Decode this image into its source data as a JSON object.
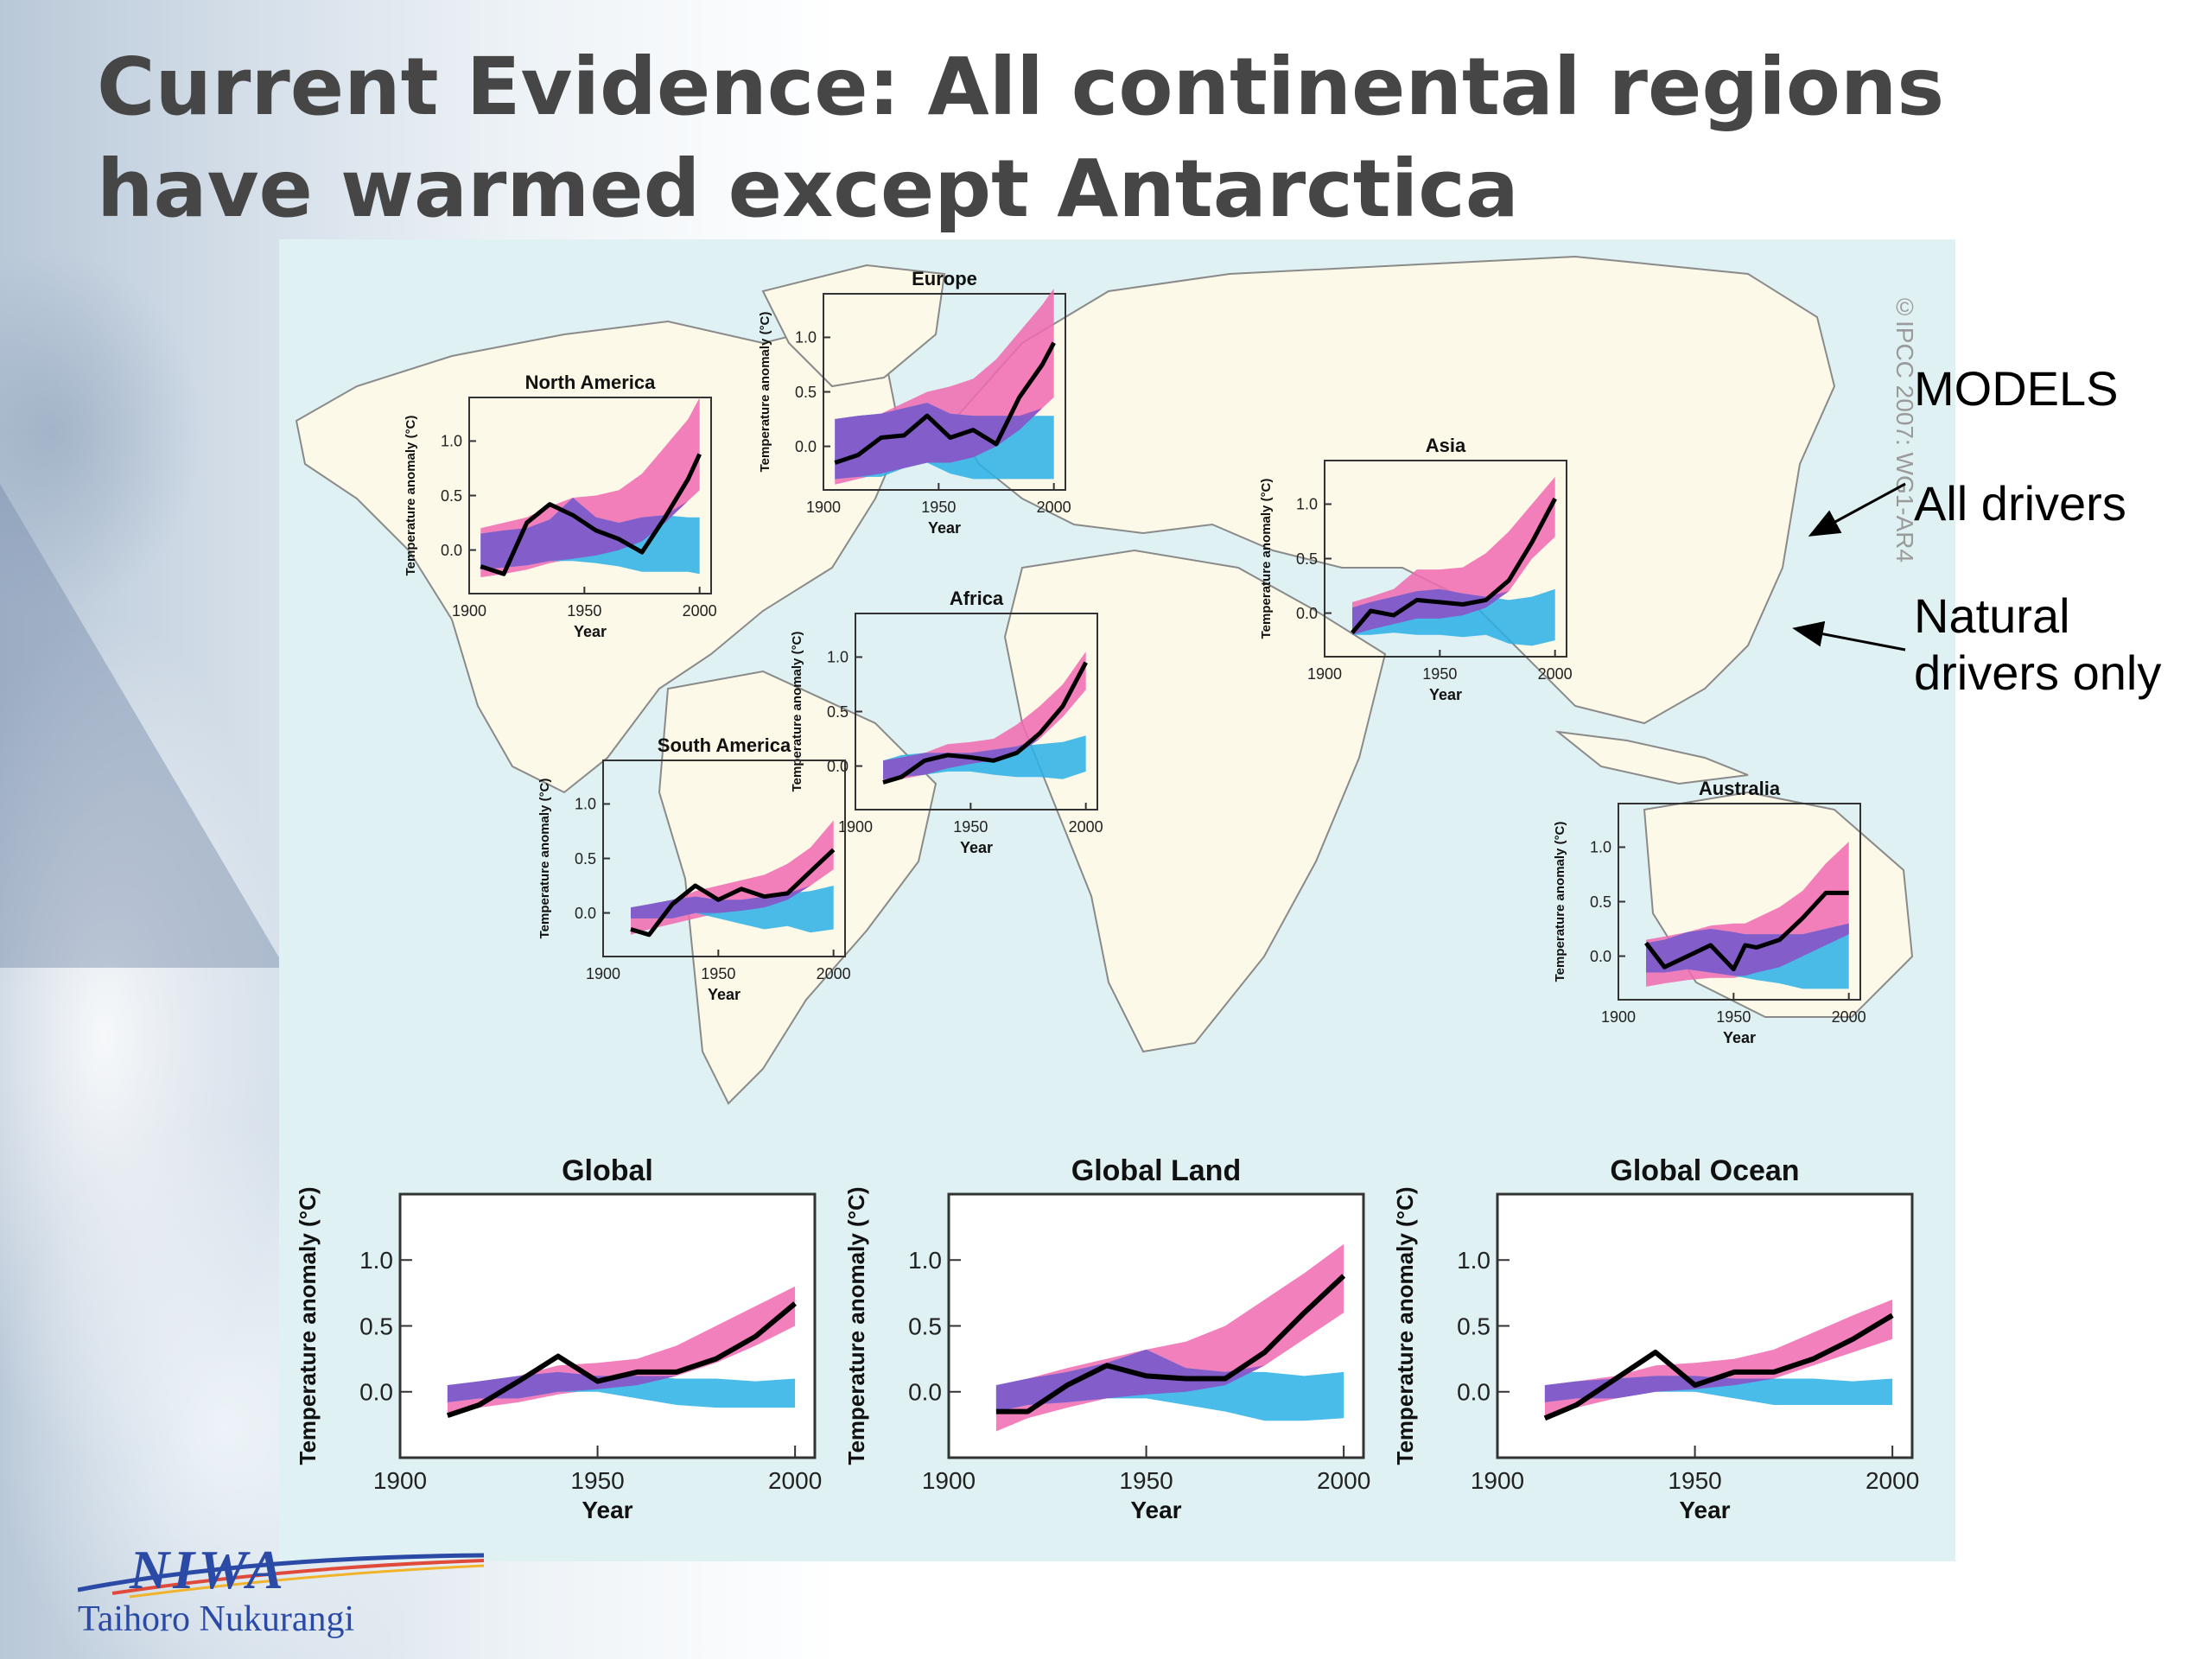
{
  "slide": {
    "title_line1": "Current Evidence: All continental regions",
    "title_line2": "have warmed except Antarctica"
  },
  "legend": {
    "models": "MODELS",
    "all_drivers": "All drivers",
    "natural_line1": "Natural",
    "natural_line2": "drivers only"
  },
  "credit": "©IPCC 2007: WG1-AR4",
  "logo": {
    "name": "NIWA",
    "subtitle": "Taihoro Nukurangi"
  },
  "colors": {
    "all_drivers": "#f06ab0",
    "natural": "#2ab0e6",
    "overlap": "#8a55c8",
    "observed": "#000000",
    "figure_bg": "#dff1f2"
  },
  "chart_data": [
    {
      "type": "area",
      "id": "north-america",
      "title": "North America",
      "xlabel": "Year",
      "ylabel": "Temperature anomaly (°C)",
      "xlim": [
        1900,
        2005
      ],
      "ylim": [
        -0.4,
        1.4
      ],
      "xticks": [
        1900,
        1950,
        2000
      ],
      "yticks": [
        0.0,
        0.5,
        1.0
      ],
      "x": [
        1905,
        1915,
        1925,
        1935,
        1945,
        1955,
        1965,
        1975,
        1985,
        1995,
        2000
      ],
      "observed": [
        -0.15,
        -0.22,
        0.25,
        0.42,
        0.32,
        0.18,
        0.1,
        -0.02,
        0.3,
        0.65,
        0.88
      ],
      "all_drivers": {
        "low": [
          -0.25,
          -0.22,
          -0.18,
          -0.12,
          -0.08,
          -0.05,
          0.0,
          0.08,
          0.25,
          0.45,
          0.55
        ],
        "high": [
          0.2,
          0.25,
          0.3,
          0.4,
          0.48,
          0.5,
          0.55,
          0.7,
          0.95,
          1.2,
          1.4
        ]
      },
      "natural": {
        "low": [
          -0.18,
          -0.16,
          -0.14,
          -0.1,
          -0.1,
          -0.12,
          -0.15,
          -0.2,
          -0.2,
          -0.2,
          -0.22
        ],
        "high": [
          0.15,
          0.18,
          0.2,
          0.28,
          0.48,
          0.3,
          0.25,
          0.3,
          0.32,
          0.3,
          0.3
        ]
      }
    },
    {
      "type": "area",
      "id": "europe",
      "title": "Europe",
      "xlabel": "Year",
      "ylabel": "Temperature anomaly (°C)",
      "xlim": [
        1900,
        2005
      ],
      "ylim": [
        -0.4,
        1.4
      ],
      "xticks": [
        1900,
        1950,
        2000
      ],
      "yticks": [
        0.0,
        0.5,
        1.0
      ],
      "x": [
        1905,
        1915,
        1925,
        1935,
        1945,
        1955,
        1965,
        1975,
        1985,
        1995,
        2000
      ],
      "observed": [
        -0.15,
        -0.08,
        0.08,
        0.1,
        0.28,
        0.08,
        0.15,
        0.02,
        0.45,
        0.75,
        0.95
      ],
      "all_drivers": {
        "low": [
          -0.35,
          -0.3,
          -0.25,
          -0.2,
          -0.15,
          -0.15,
          -0.1,
          0.0,
          0.15,
          0.35,
          0.45
        ],
        "high": [
          0.25,
          0.28,
          0.3,
          0.4,
          0.5,
          0.55,
          0.62,
          0.8,
          1.05,
          1.3,
          1.45
        ]
      },
      "natural": {
        "low": [
          -0.3,
          -0.28,
          -0.28,
          -0.2,
          -0.15,
          -0.25,
          -0.3,
          -0.3,
          -0.3,
          -0.3,
          -0.3
        ],
        "high": [
          0.25,
          0.28,
          0.3,
          0.35,
          0.4,
          0.3,
          0.28,
          0.28,
          0.28,
          0.28,
          0.28
        ]
      }
    },
    {
      "type": "area",
      "id": "asia",
      "title": "Asia",
      "xlabel": "Year",
      "ylabel": "Temperature anomaly (°C)",
      "xlim": [
        1900,
        2005
      ],
      "ylim": [
        -0.4,
        1.4
      ],
      "xticks": [
        1900,
        1950,
        2000
      ],
      "yticks": [
        0.0,
        0.5,
        1.0
      ],
      "x": [
        1912,
        1920,
        1930,
        1940,
        1950,
        1960,
        1970,
        1980,
        1990,
        2000
      ],
      "observed": [
        -0.18,
        0.02,
        -0.02,
        0.12,
        0.1,
        0.08,
        0.12,
        0.3,
        0.65,
        1.05
      ],
      "all_drivers": {
        "low": [
          -0.2,
          -0.15,
          -0.1,
          -0.05,
          -0.05,
          -0.02,
          0.05,
          0.2,
          0.5,
          0.7
        ],
        "high": [
          0.1,
          0.15,
          0.22,
          0.4,
          0.4,
          0.42,
          0.55,
          0.75,
          1.0,
          1.25
        ]
      },
      "natural": {
        "low": [
          -0.2,
          -0.2,
          -0.18,
          -0.2,
          -0.2,
          -0.22,
          -0.2,
          -0.28,
          -0.3,
          -0.25
        ],
        "high": [
          0.05,
          0.1,
          0.15,
          0.2,
          0.22,
          0.18,
          0.15,
          0.12,
          0.15,
          0.22
        ]
      }
    },
    {
      "type": "area",
      "id": "africa",
      "title": "Africa",
      "xlabel": "Year",
      "ylabel": "Temperature anomaly (°C)",
      "xlim": [
        1900,
        2005
      ],
      "ylim": [
        -0.4,
        1.4
      ],
      "xticks": [
        1900,
        1950,
        2000
      ],
      "yticks": [
        0.0,
        0.5,
        1.0
      ],
      "x": [
        1912,
        1920,
        1930,
        1940,
        1950,
        1960,
        1970,
        1980,
        1990,
        2000
      ],
      "observed": [
        -0.15,
        -0.1,
        0.05,
        0.1,
        0.08,
        0.05,
        0.12,
        0.3,
        0.55,
        0.95
      ],
      "all_drivers": {
        "low": [
          -0.15,
          -0.12,
          -0.08,
          -0.02,
          0.02,
          0.05,
          0.1,
          0.25,
          0.45,
          0.7
        ],
        "high": [
          0.05,
          0.08,
          0.12,
          0.2,
          0.22,
          0.25,
          0.38,
          0.55,
          0.75,
          1.05
        ]
      },
      "natural": {
        "low": [
          -0.12,
          -0.1,
          -0.08,
          -0.05,
          -0.05,
          -0.08,
          -0.1,
          -0.1,
          -0.12,
          -0.05
        ],
        "high": [
          0.05,
          0.1,
          0.12,
          0.12,
          0.12,
          0.15,
          0.18,
          0.2,
          0.22,
          0.28
        ]
      }
    },
    {
      "type": "area",
      "id": "south-america",
      "title": "South America",
      "xlabel": "Year",
      "ylabel": "Temperature anomaly (°C)",
      "xlim": [
        1900,
        2005
      ],
      "ylim": [
        -0.4,
        1.4
      ],
      "xticks": [
        1900,
        1950,
        2000
      ],
      "yticks": [
        0.0,
        0.5,
        1.0
      ],
      "x": [
        1912,
        1920,
        1930,
        1940,
        1950,
        1960,
        1970,
        1980,
        1990,
        2000
      ],
      "observed": [
        -0.15,
        -0.2,
        0.08,
        0.25,
        0.12,
        0.22,
        0.15,
        0.18,
        0.38,
        0.58
      ],
      "all_drivers": {
        "low": [
          -0.2,
          -0.15,
          -0.1,
          -0.05,
          0.0,
          0.02,
          0.05,
          0.12,
          0.25,
          0.4
        ],
        "high": [
          0.05,
          0.08,
          0.12,
          0.2,
          0.25,
          0.3,
          0.35,
          0.45,
          0.6,
          0.85
        ]
      },
      "natural": {
        "low": [
          -0.05,
          -0.05,
          -0.05,
          0.0,
          -0.05,
          -0.1,
          -0.15,
          -0.12,
          -0.18,
          -0.15
        ],
        "high": [
          0.05,
          0.08,
          0.12,
          0.15,
          0.12,
          0.12,
          0.15,
          0.18,
          0.2,
          0.25
        ]
      }
    },
    {
      "type": "area",
      "id": "australia",
      "title": "Australia",
      "xlabel": "Year",
      "ylabel": "Temperature anomaly (°C)",
      "xlim": [
        1900,
        2005
      ],
      "ylim": [
        -0.4,
        1.4
      ],
      "xticks": [
        1900,
        1950,
        2000
      ],
      "yticks": [
        0.0,
        0.5,
        1.0
      ],
      "x": [
        1912,
        1920,
        1930,
        1940,
        1950,
        1955,
        1960,
        1970,
        1980,
        1990,
        2000
      ],
      "observed": [
        0.12,
        -0.1,
        0.0,
        0.1,
        -0.12,
        0.1,
        0.08,
        0.15,
        0.35,
        0.58,
        0.58
      ],
      "all_drivers": {
        "low": [
          -0.28,
          -0.25,
          -0.22,
          -0.2,
          -0.2,
          -0.18,
          -0.15,
          -0.1,
          0.0,
          0.1,
          0.2
        ],
        "high": [
          0.15,
          0.18,
          0.22,
          0.28,
          0.3,
          0.3,
          0.35,
          0.45,
          0.6,
          0.85,
          1.05
        ]
      },
      "natural": {
        "low": [
          -0.15,
          -0.15,
          -0.12,
          -0.15,
          -0.18,
          -0.2,
          -0.22,
          -0.25,
          -0.3,
          -0.3,
          -0.3
        ],
        "high": [
          0.12,
          0.15,
          0.22,
          0.25,
          0.22,
          0.2,
          0.2,
          0.2,
          0.2,
          0.25,
          0.3
        ]
      }
    },
    {
      "type": "area",
      "id": "global",
      "title": "Global",
      "xlabel": "Year",
      "ylabel": "Temperature anomaly (°C)",
      "xlim": [
        1900,
        2005
      ],
      "ylim": [
        -0.5,
        1.5
      ],
      "xticks": [
        1900,
        1950,
        2000
      ],
      "yticks": [
        0.0,
        0.5,
        1.0
      ],
      "x": [
        1912,
        1920,
        1930,
        1940,
        1950,
        1960,
        1970,
        1980,
        1990,
        2000
      ],
      "observed": [
        -0.18,
        -0.1,
        0.08,
        0.27,
        0.08,
        0.15,
        0.15,
        0.25,
        0.42,
        0.67
      ],
      "all_drivers": {
        "low": [
          -0.18,
          -0.12,
          -0.08,
          -0.02,
          0.02,
          0.05,
          0.12,
          0.22,
          0.35,
          0.5
        ],
        "high": [
          0.05,
          0.08,
          0.12,
          0.2,
          0.22,
          0.25,
          0.35,
          0.5,
          0.65,
          0.8
        ]
      },
      "natural": {
        "low": [
          -0.08,
          -0.05,
          -0.05,
          0.0,
          0.0,
          -0.05,
          -0.1,
          -0.12,
          -0.12,
          -0.12
        ],
        "high": [
          0.05,
          0.08,
          0.12,
          0.15,
          0.12,
          0.12,
          0.1,
          0.1,
          0.08,
          0.1
        ]
      }
    },
    {
      "type": "area",
      "id": "global-land",
      "title": "Global Land",
      "xlabel": "Year",
      "ylabel": "Temperature anomaly (°C)",
      "xlim": [
        1900,
        2005
      ],
      "ylim": [
        -0.5,
        1.5
      ],
      "xticks": [
        1900,
        1950,
        2000
      ],
      "yticks": [
        0.0,
        0.5,
        1.0
      ],
      "x": [
        1912,
        1920,
        1930,
        1940,
        1950,
        1960,
        1970,
        1980,
        1990,
        2000
      ],
      "observed": [
        -0.15,
        -0.15,
        0.05,
        0.2,
        0.12,
        0.1,
        0.1,
        0.3,
        0.6,
        0.88
      ],
      "all_drivers": {
        "low": [
          -0.3,
          -0.2,
          -0.12,
          -0.05,
          -0.02,
          0.0,
          0.05,
          0.2,
          0.4,
          0.6
        ],
        "high": [
          0.05,
          0.1,
          0.18,
          0.25,
          0.32,
          0.38,
          0.5,
          0.7,
          0.9,
          1.12
        ]
      },
      "natural": {
        "low": [
          -0.15,
          -0.1,
          -0.08,
          -0.05,
          -0.05,
          -0.1,
          -0.15,
          -0.22,
          -0.22,
          -0.2
        ],
        "high": [
          0.05,
          0.1,
          0.15,
          0.22,
          0.32,
          0.18,
          0.15,
          0.15,
          0.12,
          0.15
        ]
      }
    },
    {
      "type": "area",
      "id": "global-ocean",
      "title": "Global Ocean",
      "xlabel": "Year",
      "ylabel": "Temperature anomaly (°C)",
      "xlim": [
        1900,
        2005
      ],
      "ylim": [
        -0.5,
        1.5
      ],
      "xticks": [
        1900,
        1950,
        2000
      ],
      "yticks": [
        0.0,
        0.5,
        1.0
      ],
      "x": [
        1912,
        1920,
        1930,
        1940,
        1950,
        1960,
        1970,
        1980,
        1990,
        2000
      ],
      "observed": [
        -0.2,
        -0.1,
        0.1,
        0.3,
        0.05,
        0.15,
        0.15,
        0.25,
        0.4,
        0.58
      ],
      "all_drivers": {
        "low": [
          -0.18,
          -0.12,
          -0.05,
          0.0,
          0.02,
          0.05,
          0.1,
          0.2,
          0.3,
          0.4
        ],
        "high": [
          0.05,
          0.08,
          0.12,
          0.2,
          0.22,
          0.25,
          0.32,
          0.45,
          0.58,
          0.7
        ]
      },
      "natural": {
        "low": [
          -0.08,
          -0.05,
          -0.05,
          0.0,
          0.0,
          -0.05,
          -0.1,
          -0.1,
          -0.1,
          -0.1
        ],
        "high": [
          0.05,
          0.08,
          0.1,
          0.12,
          0.12,
          0.1,
          0.1,
          0.1,
          0.08,
          0.1
        ]
      }
    }
  ]
}
